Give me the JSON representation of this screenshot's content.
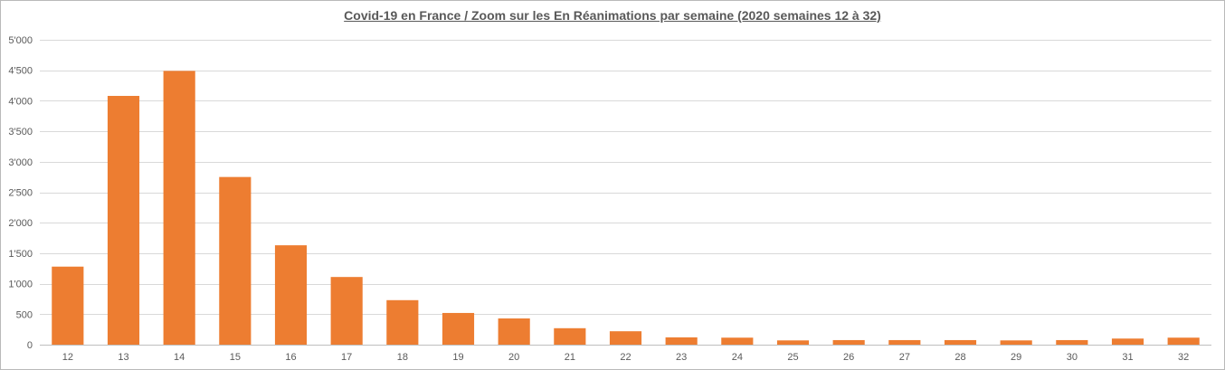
{
  "chart_data": {
    "type": "bar",
    "title": "Covid-19 en France / Zoom  sur les En Réanimations par semaine (2020 semaines 12 à 32)",
    "xlabel": "",
    "ylabel": "",
    "categories": [
      "12",
      "13",
      "14",
      "15",
      "16",
      "17",
      "18",
      "19",
      "20",
      "21",
      "22",
      "23",
      "24",
      "25",
      "26",
      "27",
      "28",
      "29",
      "30",
      "31",
      "32"
    ],
    "values": [
      1280,
      4080,
      4490,
      2750,
      1630,
      1110,
      730,
      520,
      430,
      270,
      220,
      120,
      115,
      70,
      75,
      75,
      75,
      70,
      75,
      100,
      115
    ],
    "ylim": [
      0,
      5000
    ],
    "yticks": [
      0,
      500,
      1000,
      1500,
      2000,
      2500,
      3000,
      3500,
      4000,
      4500,
      5000
    ],
    "ytick_labels": [
      "0",
      "500",
      "1'000",
      "1'500",
      "2'000",
      "2'500",
      "3'000",
      "3'500",
      "4'000",
      "4'500",
      "5'000"
    ],
    "grid": true,
    "legend": "none",
    "bar_color": "#ed7d31",
    "grid_color": "#d9d9d9"
  }
}
